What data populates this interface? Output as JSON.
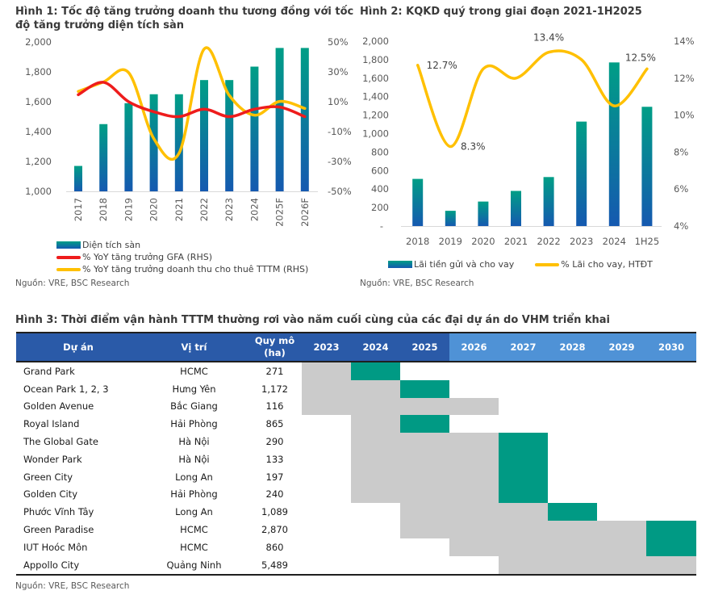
{
  "figure1": {
    "title_line1": "Hình 1: Tốc độ tăng trưởng doanh thu tương đồng với tốc",
    "title_line2": "độ tăng trưởng diện tích sàn",
    "source": "Nguồn: VRE, BSC Research",
    "legend": [
      "Diện tích sàn",
      "% YoY tăng trưởng GFA (RHS)",
      "% YoY tăng trưởng doanh thu cho thuê TTTM (RHS)"
    ],
    "colors": {
      "bar_top": "#009e86",
      "bar_bottom": "#1559b0",
      "gfa": "#ee1c1c",
      "revenue": "#ffc000"
    }
  },
  "figure2": {
    "title": "Hình 2: KQKD quý trong giai đoạn 2021-1H2025",
    "source": "Nguồn: VRE, BSC Research",
    "legend": [
      "Lãi tiền gửi và cho vay",
      "% Lãi cho vay, HTĐT"
    ],
    "colors": {
      "bar_top": "#009e86",
      "bar_bottom": "#1559b0",
      "line": "#ffc000"
    }
  },
  "chart_data": [
    {
      "type": "bar",
      "title": "Hình 1: Tốc độ tăng trưởng doanh thu tương đồng với tốc độ tăng trưởng diện tích sàn",
      "categories": [
        "2017",
        "2018",
        "2019",
        "2020",
        "2021",
        "2022",
        "2023",
        "2024",
        "2025F",
        "2026F"
      ],
      "series": [
        {
          "name": "Diện tích sàn",
          "type": "bar",
          "axis": "left",
          "values": [
            1170,
            1450,
            1590,
            1650,
            1650,
            1745,
            1745,
            1835,
            1960,
            1960
          ]
        },
        {
          "name": "% YoY tăng trưởng GFA (RHS)",
          "type": "line",
          "axis": "right",
          "values": [
            14.7,
            23.0,
            10.0,
            3.3,
            0.0,
            5.0,
            0.0,
            5.0,
            6.4,
            0.0
          ]
        },
        {
          "name": "% YoY tăng trưởng doanh thu cho thuê TTTM (RHS)",
          "type": "line",
          "axis": "right",
          "values": [
            16.9,
            23.2,
            29.5,
            -14.7,
            -24.6,
            45.3,
            14.2,
            1.0,
            10.2,
            5.5
          ]
        }
      ],
      "ylim": [
        1000,
        2000
      ],
      "yticks": [
        "1,000",
        "1,200",
        "1,400",
        "1,600",
        "1,800",
        "2,000"
      ],
      "y2lim": [
        -50,
        50
      ],
      "y2ticks": [
        "-50%",
        "-30%",
        "-10%",
        "10%",
        "30%",
        "50%"
      ],
      "xlabel": "",
      "ylabel": "",
      "legend_position": "bottom",
      "grid": false
    },
    {
      "type": "bar",
      "title": "Hình 2: KQKD quý trong giai đoạn 2021-1H2025",
      "categories": [
        "2018",
        "2019",
        "2020",
        "2021",
        "2022",
        "2023",
        "2024",
        "1H25"
      ],
      "series": [
        {
          "name": "Lãi tiền gửi và cho vay",
          "type": "bar",
          "axis": "left",
          "values": [
            510,
            165,
            265,
            380,
            530,
            1130,
            1770,
            1290
          ]
        },
        {
          "name": "% Lãi cho vay, HTĐT",
          "type": "line",
          "axis": "right",
          "values": [
            12.7,
            8.3,
            12.5,
            12.0,
            13.4,
            13.0,
            10.5,
            12.5
          ]
        }
      ],
      "data_labels": [
        {
          "category": "2018",
          "text": "12.7%"
        },
        {
          "category": "2019",
          "text": "8.3%"
        },
        {
          "category": "2022",
          "text": "13.4%"
        },
        {
          "category": "1H25",
          "text": "12.5%"
        }
      ],
      "ylim": [
        0,
        2000
      ],
      "yticks": [
        "-",
        "200",
        "400",
        "600",
        "800",
        "1,000",
        "1,200",
        "1,400",
        "1,600",
        "1,800",
        "2,000"
      ],
      "y2lim": [
        4,
        14
      ],
      "y2ticks": [
        "4%",
        "6%",
        "8%",
        "10%",
        "12%",
        "14%"
      ],
      "xlabel": "",
      "ylabel": "",
      "legend_position": "bottom",
      "grid": false
    },
    {
      "type": "table",
      "title": "Hình 3: Thời điểm vận hành TTTM thường rơi vào năm cuối cùng của các đại dự án do VHM triển khai",
      "columns": [
        "Dự án",
        "Vị trí",
        "Quy mô (ha)",
        "2023",
        "2024",
        "2025",
        "2026",
        "2027",
        "2028",
        "2029",
        "2030"
      ],
      "rows": [
        {
          "project": "Grand Park",
          "location": "HCMC",
          "size": "271",
          "construction": [
            2023,
            2023
          ],
          "mall_opening": 2024
        },
        {
          "project": "Ocean Park 1, 2, 3",
          "location": "Hưng Yên",
          "size": "1,172",
          "construction": [
            2023,
            2024
          ],
          "mall_opening": 2025
        },
        {
          "project": "Golden Avenue",
          "location": "Bắc Giang",
          "size": "116",
          "construction": [
            2023,
            2026
          ],
          "mall_opening": null
        },
        {
          "project": "Royal Island",
          "location": "Hải Phòng",
          "size": "865",
          "construction": [
            2024,
            2024
          ],
          "mall_opening": 2025
        },
        {
          "project": "The Global Gate",
          "location": "Hà Nội",
          "size": "290",
          "construction": [
            2024,
            2026
          ],
          "mall_opening": 2027
        },
        {
          "project": "Wonder Park",
          "location": "Hà Nội",
          "size": "133",
          "construction": [
            2024,
            2026
          ],
          "mall_opening": 2027
        },
        {
          "project": "Green City",
          "location": "Long An",
          "size": "197",
          "construction": [
            2024,
            2026
          ],
          "mall_opening": 2027
        },
        {
          "project": "Golden City",
          "location": "Hải Phòng",
          "size": "240",
          "construction": [
            2024,
            2026
          ],
          "mall_opening": 2027
        },
        {
          "project": "Phước Vĩnh Tây",
          "location": "Long An",
          "size": "1,089",
          "construction": [
            2025,
            2027
          ],
          "mall_opening": 2028
        },
        {
          "project": "Green Paradise",
          "location": "HCMC",
          "size": "2,870",
          "construction": [
            2025,
            2029
          ],
          "mall_opening": 2030
        },
        {
          "project": "IUT Hoóc Môn",
          "location": "HCMC",
          "size": "860",
          "construction": [
            2026,
            2029
          ],
          "mall_opening": 2030
        },
        {
          "project": "Appollo City",
          "location": "Quảng Ninh",
          "size": "5,489",
          "construction": [
            2027,
            2030
          ],
          "mall_opening": null
        }
      ]
    }
  ],
  "figure3": {
    "title": "Hình 3: Thời điểm vận hành TTTM thường rơi vào năm cuối cùng của các đại dự án do VHM triển khai",
    "source": "Nguồn: VRE, BSC Research",
    "headers": {
      "project": "Dự án",
      "location": "Vị trí",
      "size": "Quy mô (ha)"
    },
    "years": [
      "2023",
      "2024",
      "2025",
      "2026",
      "2027",
      "2028",
      "2029",
      "2030"
    ],
    "colors": {
      "header_past": "#2a5aa8",
      "header_future": "#4f92d6",
      "construction": "#cbcbcb",
      "opening": "#009a84"
    }
  }
}
